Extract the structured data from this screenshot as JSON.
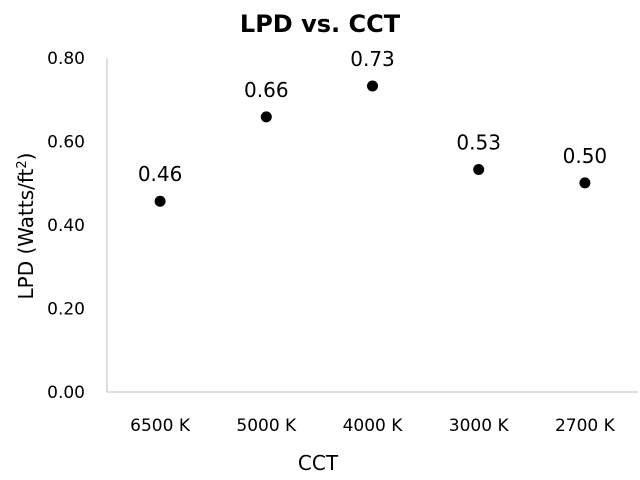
{
  "chart_data": {
    "type": "scatter",
    "title": "LPD vs. CCT",
    "xlabel": "CCT",
    "ylabel_main": "LPD (Watts/ft",
    "ylabel_sup": "2",
    "ylabel_end": ")",
    "categories": [
      "6500 K",
      "5000 K",
      "4000 K",
      "3000 K",
      "2700 K"
    ],
    "values": [
      0.457,
      0.659,
      0.733,
      0.533,
      0.501
    ],
    "data_labels": [
      "0.46",
      "0.66",
      "0.73",
      "0.53",
      "0.50"
    ],
    "yticks": [
      "0.00",
      "0.20",
      "0.40",
      "0.60",
      "0.80"
    ],
    "ylim": [
      0,
      0.8
    ],
    "grid": false,
    "marker_color": "#000000"
  }
}
